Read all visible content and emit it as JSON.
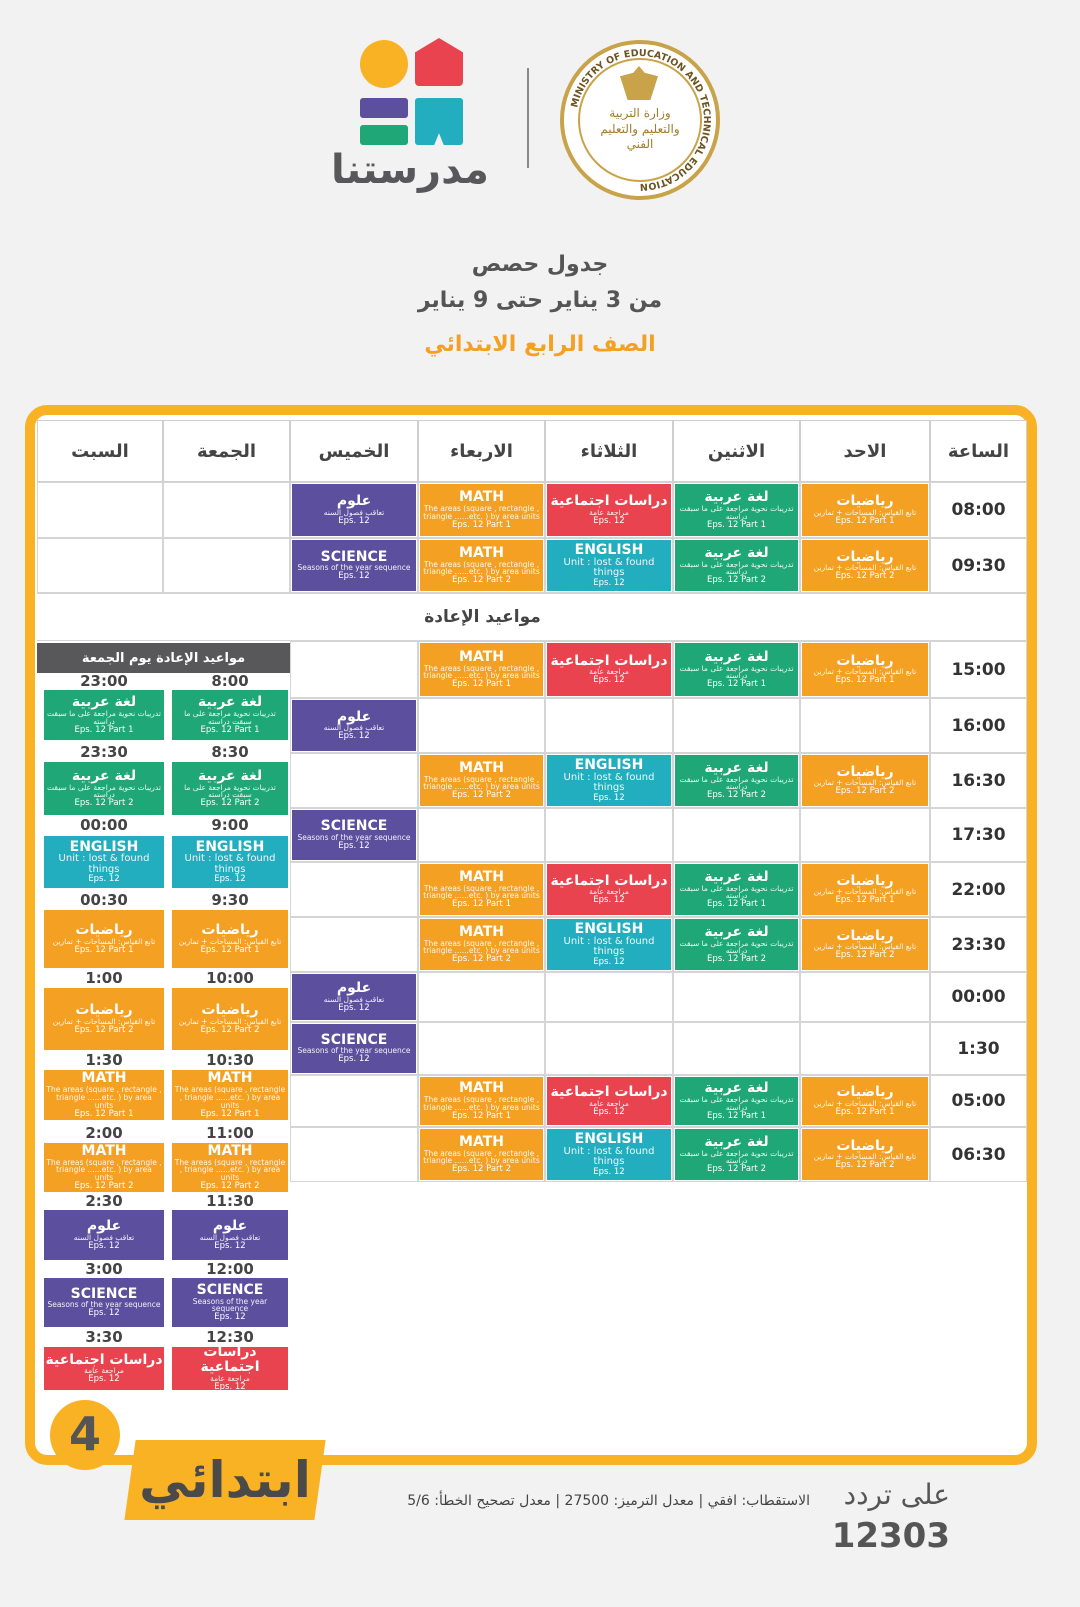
{
  "header": {
    "logo_text": "مدرستنا",
    "ministry_seal_text_en": "MINISTRY OF EDUCATION AND TECHNICAL EDUCATION",
    "ministry_seal_text_ar": "وزارة التربية والتعليم والتعليم الفني",
    "title": "جدول حصص",
    "date_range": "من 3 يناير حتى 9 يناير",
    "grade": "الصف الرابع الابتدائي"
  },
  "colors": {
    "accent": "#f9b223",
    "math": "#f4a023",
    "arabic": "#1fa777",
    "social": "#e8434f",
    "english": "#22aebf",
    "science": "#5b4f9e",
    "panel_header": "#58585a"
  },
  "table": {
    "columns": [
      "الساعة",
      "الاحد",
      "الاثنين",
      "الثلاثاء",
      "الاربعاء",
      "الخميس",
      "الجمعة",
      "السبت"
    ],
    "rebroadcast_label": "مواعيد الإعادة",
    "rows": [
      {
        "time": "08:00",
        "cells": [
          "math_ar_p1",
          "arabic_p1",
          "social",
          "math_en_p1",
          "science_ar",
          "",
          ""
        ]
      },
      {
        "time": "09:30",
        "cells": [
          "math_ar_p2",
          "arabic_p2",
          "english",
          "math_en_p2",
          "science_en",
          "",
          ""
        ]
      },
      {
        "time": "15:00",
        "cells": [
          "math_ar_p1",
          "arabic_p1",
          "social",
          "math_en_p1",
          ""
        ]
      },
      {
        "time": "16:00",
        "cells": [
          "",
          "",
          "",
          "",
          "science_ar"
        ]
      },
      {
        "time": "16:30",
        "cells": [
          "math_ar_p2",
          "arabic_p2",
          "english",
          "math_en_p2",
          ""
        ]
      },
      {
        "time": "17:30",
        "cells": [
          "",
          "",
          "",
          "",
          "science_en"
        ]
      },
      {
        "time": "22:00",
        "cells": [
          "math_ar_p1",
          "arabic_p1",
          "social",
          "math_en_p1",
          ""
        ]
      },
      {
        "time": "23:30",
        "cells": [
          "math_ar_p2",
          "arabic_p2",
          "english",
          "math_en_p2",
          ""
        ]
      },
      {
        "time": "00:00",
        "cells": [
          "",
          "",
          "",
          "",
          "science_ar"
        ]
      },
      {
        "time": "1:30",
        "cells": [
          "",
          "",
          "",
          "",
          "science_en"
        ]
      },
      {
        "time": "05:00",
        "cells": [
          "math_ar_p1",
          "arabic_p1",
          "social",
          "math_en_p1",
          ""
        ]
      },
      {
        "time": "06:30",
        "cells": [
          "math_ar_p2",
          "arabic_p2",
          "english",
          "math_en_p2",
          ""
        ]
      }
    ]
  },
  "subjects": {
    "math_ar_p1": {
      "title": "رياضيات",
      "desc": "تابع القياس: المساحات + تمارين",
      "eps": "Eps. 12 Part 1",
      "color": "#f4a023"
    },
    "math_ar_p2": {
      "title": "رياضيات",
      "desc": "تابع القياس: المساحات + تمارين",
      "eps": "Eps. 12 Part 2",
      "color": "#f4a023"
    },
    "arabic_p1": {
      "title": "لغة عربية",
      "desc": "تدريبات نحوية مراجعة على ما سبقت دراسته",
      "eps": "Eps. 12 Part 1",
      "color": "#1fa777"
    },
    "arabic_p2": {
      "title": "لغة عربية",
      "desc": "تدريبات نحوية مراجعة على ما سبقت دراسته",
      "eps": "Eps. 12 Part 2",
      "color": "#1fa777"
    },
    "social": {
      "title": "دراسات اجتماعية",
      "desc": "مراجعة عامة",
      "eps": "Eps. 12",
      "color": "#e8434f"
    },
    "english": {
      "title": "ENGLISH",
      "desc": "Unit : lost & found things",
      "eps": "Eps. 12",
      "color": "#22aebf",
      "en": true
    },
    "math_en_p1": {
      "title": "MATH",
      "desc": "The areas (square , rectangle , triangle ......etc. ) by area units",
      "eps": "Eps. 12 Part 1",
      "color": "#f4a023",
      "en": true
    },
    "math_en_p2": {
      "title": "MATH",
      "desc": "The areas (square , rectangle , triangle ......etc. ) by area units",
      "eps": "Eps. 12 Part 2",
      "color": "#f4a023",
      "en": true
    },
    "science_ar": {
      "title": "علوم",
      "desc": "تعاقب فصول السنه",
      "eps": "Eps. 12",
      "color": "#5b4f9e"
    },
    "science_en": {
      "title": "SCIENCE",
      "desc": "Seasons of the year sequence",
      "eps": "Eps. 12",
      "color": "#5b4f9e",
      "en": true
    }
  },
  "friday_panel": {
    "title": "مواعيد الإعادة يوم الجمعة",
    "subjects": [
      "arabic_p1",
      "arabic_p2",
      "english",
      "math_ar_p1",
      "math_ar_p2",
      "math_en_p1",
      "math_en_p2",
      "science_ar",
      "science_en",
      "social"
    ],
    "times_left": [
      "23:00",
      "23:30",
      "00:00",
      "00:30",
      "1:00",
      "1:30",
      "2:00",
      "2:30",
      "3:00",
      "3:30"
    ],
    "times_right": [
      "8:00",
      "8:30",
      "9:00",
      "9:30",
      "10:00",
      "10:30",
      "11:00",
      "11:30",
      "12:00",
      "12:30"
    ]
  },
  "footer": {
    "badge_text": "ابتدائي",
    "badge_number": "4",
    "freq_label": "على تردد",
    "freq_number": "12303",
    "signal_info": "الاستقطاب: افقي | معدل الترميز: 27500 | معدل تصحيح الخطأ: 5/6"
  }
}
